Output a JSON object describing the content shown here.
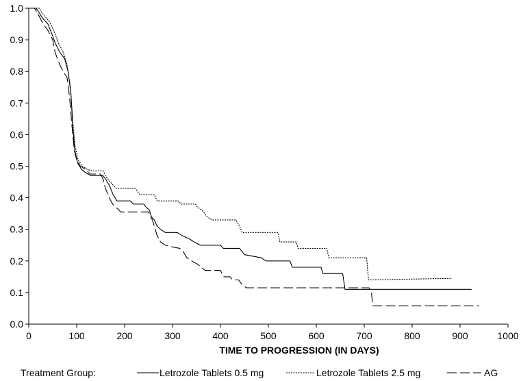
{
  "chart_data": {
    "type": "line",
    "xlabel": "TIME TO PROGRESSION (IN DAYS)",
    "ylabel": "",
    "xlim": [
      0,
      1000
    ],
    "ylim": [
      0.0,
      1.0
    ],
    "x_ticks": [
      "0",
      "100",
      "200",
      "300",
      "400",
      "500",
      "600",
      "700",
      "800",
      "900",
      "1000"
    ],
    "y_ticks": [
      "0.0",
      "0.1",
      "0.2",
      "0.3",
      "0.4",
      "0.5",
      "0.6",
      "0.7",
      "0.8",
      "0.9",
      "1.0"
    ],
    "grid": false,
    "legend": {
      "placement": "bottom",
      "title": "Treatment Group:",
      "entries": [
        "Letrozole Tablets 0.5 mg",
        "Letrozole Tablets 2.5 mg",
        "AG"
      ]
    },
    "series": [
      {
        "name": "Letrozole Tablets 0.5 mg",
        "style": "solid",
        "points": [
          [
            0,
            1.0
          ],
          [
            15,
            1.0
          ],
          [
            20,
            0.99
          ],
          [
            28,
            0.97
          ],
          [
            40,
            0.95
          ],
          [
            48,
            0.92
          ],
          [
            55,
            0.89
          ],
          [
            65,
            0.86
          ],
          [
            75,
            0.84
          ],
          [
            82,
            0.8
          ],
          [
            88,
            0.73
          ],
          [
            92,
            0.62
          ],
          [
            96,
            0.55
          ],
          [
            102,
            0.51
          ],
          [
            110,
            0.49
          ],
          [
            118,
            0.48
          ],
          [
            130,
            0.47
          ],
          [
            155,
            0.47
          ],
          [
            160,
            0.46
          ],
          [
            168,
            0.44
          ],
          [
            176,
            0.41
          ],
          [
            184,
            0.39
          ],
          [
            212,
            0.39
          ],
          [
            218,
            0.38
          ],
          [
            240,
            0.38
          ],
          [
            245,
            0.37
          ],
          [
            252,
            0.36
          ],
          [
            256,
            0.34
          ],
          [
            262,
            0.33
          ],
          [
            268,
            0.31
          ],
          [
            275,
            0.3
          ],
          [
            285,
            0.29
          ],
          [
            310,
            0.29
          ],
          [
            320,
            0.28
          ],
          [
            335,
            0.27
          ],
          [
            345,
            0.26
          ],
          [
            358,
            0.25
          ],
          [
            400,
            0.25
          ],
          [
            406,
            0.24
          ],
          [
            440,
            0.24
          ],
          [
            450,
            0.22
          ],
          [
            485,
            0.21
          ],
          [
            495,
            0.2
          ],
          [
            545,
            0.2
          ],
          [
            550,
            0.18
          ],
          [
            610,
            0.18
          ],
          [
            614,
            0.16
          ],
          [
            655,
            0.16
          ],
          [
            660,
            0.11
          ],
          [
            924,
            0.11
          ]
        ]
      },
      {
        "name": "Letrozole Tablets 2.5 mg",
        "style": "dotted",
        "points": [
          [
            0,
            1.0
          ],
          [
            22,
            1.0
          ],
          [
            30,
            0.98
          ],
          [
            42,
            0.96
          ],
          [
            52,
            0.93
          ],
          [
            62,
            0.89
          ],
          [
            72,
            0.86
          ],
          [
            80,
            0.82
          ],
          [
            87,
            0.75
          ],
          [
            92,
            0.64
          ],
          [
            97,
            0.56
          ],
          [
            103,
            0.52
          ],
          [
            112,
            0.5
          ],
          [
            122,
            0.49
          ],
          [
            132,
            0.485
          ],
          [
            155,
            0.485
          ],
          [
            160,
            0.47
          ],
          [
            170,
            0.45
          ],
          [
            182,
            0.43
          ],
          [
            222,
            0.43
          ],
          [
            232,
            0.41
          ],
          [
            262,
            0.41
          ],
          [
            268,
            0.39
          ],
          [
            312,
            0.39
          ],
          [
            318,
            0.38
          ],
          [
            348,
            0.38
          ],
          [
            352,
            0.37
          ],
          [
            362,
            0.36
          ],
          [
            372,
            0.34
          ],
          [
            382,
            0.33
          ],
          [
            432,
            0.33
          ],
          [
            440,
            0.31
          ],
          [
            445,
            0.29
          ],
          [
            520,
            0.29
          ],
          [
            524,
            0.26
          ],
          [
            558,
            0.26
          ],
          [
            562,
            0.24
          ],
          [
            622,
            0.24
          ],
          [
            626,
            0.21
          ],
          [
            705,
            0.21
          ],
          [
            709,
            0.14
          ],
          [
            883,
            0.145
          ]
        ]
      },
      {
        "name": "AG",
        "style": "dashed",
        "points": [
          [
            0,
            1.0
          ],
          [
            12,
            1.0
          ],
          [
            20,
            0.98
          ],
          [
            30,
            0.95
          ],
          [
            40,
            0.93
          ],
          [
            50,
            0.9
          ],
          [
            55,
            0.86
          ],
          [
            65,
            0.82
          ],
          [
            72,
            0.8
          ],
          [
            80,
            0.78
          ],
          [
            85,
            0.72
          ],
          [
            90,
            0.63
          ],
          [
            95,
            0.55
          ],
          [
            100,
            0.52
          ],
          [
            108,
            0.5
          ],
          [
            118,
            0.49
          ],
          [
            128,
            0.475
          ],
          [
            150,
            0.475
          ],
          [
            155,
            0.46
          ],
          [
            160,
            0.43
          ],
          [
            168,
            0.4
          ],
          [
            175,
            0.38
          ],
          [
            182,
            0.37
          ],
          [
            192,
            0.355
          ],
          [
            250,
            0.355
          ],
          [
            254,
            0.34
          ],
          [
            258,
            0.33
          ],
          [
            262,
            0.31
          ],
          [
            268,
            0.28
          ],
          [
            275,
            0.26
          ],
          [
            285,
            0.25
          ],
          [
            298,
            0.245
          ],
          [
            315,
            0.24
          ],
          [
            322,
            0.23
          ],
          [
            330,
            0.21
          ],
          [
            340,
            0.2
          ],
          [
            352,
            0.19
          ],
          [
            360,
            0.18
          ],
          [
            368,
            0.17
          ],
          [
            400,
            0.17
          ],
          [
            407,
            0.15
          ],
          [
            420,
            0.15
          ],
          [
            425,
            0.14
          ],
          [
            438,
            0.14
          ],
          [
            445,
            0.125
          ],
          [
            454,
            0.115
          ],
          [
            710,
            0.115
          ],
          [
            715,
            0.1
          ],
          [
            718,
            0.058
          ],
          [
            940,
            0.058
          ]
        ]
      }
    ]
  }
}
